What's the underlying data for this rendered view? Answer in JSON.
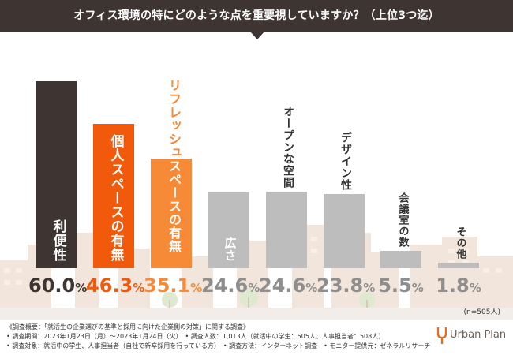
{
  "colors": {
    "header_bg": "#3e3533",
    "dark": "#3e3533",
    "orange_dark": "#f15a0a",
    "orange_light": "#f78a36",
    "gray_bar": "#bdbdbd",
    "gray_text": "#8e8e8e"
  },
  "header": {
    "title": "オフィス環境の特にどのような点を重要視していますか？（上位3つ迄）"
  },
  "chart_data": {
    "type": "bar",
    "title": "オフィス環境の特にどのような点を重要視していますか？（上位3つ迄）",
    "categories": [
      "利便性",
      "個人スペースの有無",
      "リフレッシュスペースの有無",
      "広さ",
      "オープンな空間",
      "デザイン性",
      "会議室の数",
      "その他"
    ],
    "values": [
      60.0,
      46.3,
      35.1,
      24.6,
      24.6,
      23.8,
      5.5,
      1.8
    ],
    "value_labels": [
      "60.0",
      "46.3",
      "35.1",
      "24.6",
      "24.6",
      "23.8",
      "5.5",
      "1.8"
    ],
    "unit": "%",
    "ylim": [
      0,
      70
    ],
    "xlabel": "",
    "ylabel": "",
    "grid": false,
    "sample_note": "(n=505人)"
  },
  "survey": {
    "overview": "《調査概要：「就活生の企業選びの基準と採用に向けた企業側の対策」に関する調査》",
    "line2": "• 調査期間：2023年1月23日（月）〜2023年1月24日（火）　• 調査人数：1,013人（就活中の学生：505人、人事担当者：508人）",
    "line3": "• 調査対象：就活中の学生、人事担当者（自社で新卒採用を行っている方）　• 調査方法：インターネット調査　• モニター提供元：ゼネラルリサーチ"
  },
  "brand": {
    "name": "Urban Plan",
    "icon": "urban-plan-logo-icon"
  }
}
